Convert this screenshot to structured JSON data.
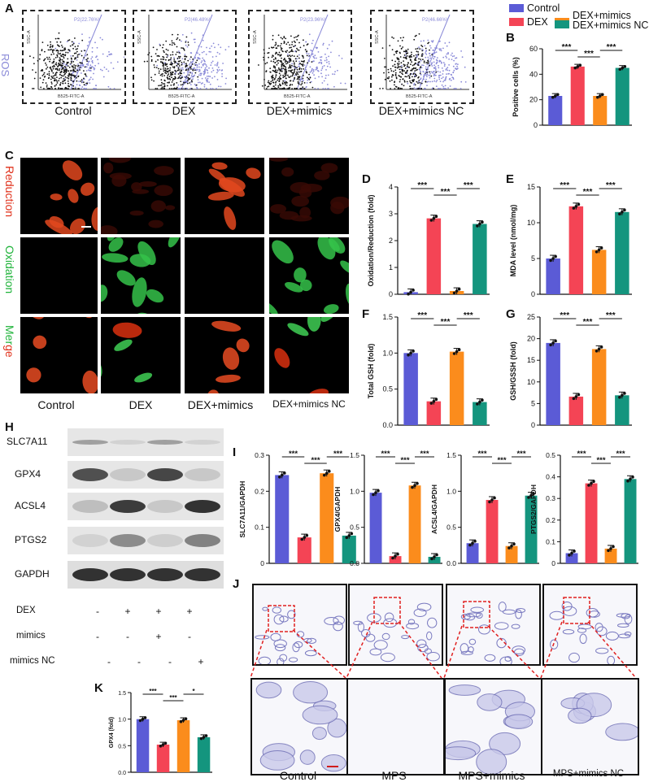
{
  "panel_letters": [
    "A",
    "B",
    "C",
    "D",
    "E",
    "F",
    "G",
    "H",
    "I",
    "J",
    "K"
  ],
  "colors": {
    "control": "#5b5bd6",
    "dex": "#f44455",
    "mimics": "#fb8c1c",
    "nc": "#14957e"
  },
  "legend": [
    "Control",
    "DEX",
    "DEX+mimics",
    "DEX+mimics NC"
  ],
  "flow": {
    "ylabel": "ROS",
    "xlabel": "B525-FITC-A",
    "yaxis": "SSC-A",
    "panels": [
      {
        "label": "Control",
        "gate": "P2(22.76%)"
      },
      {
        "label": "DEX",
        "gate": "P2(46.48%)"
      },
      {
        "label": "DEX+mimics",
        "gate": "P2(23.96%)"
      },
      {
        "label": "DEX+mimics NC",
        "gate": "P2(46.66%)"
      }
    ]
  },
  "micro": {
    "rows": [
      "Reduction",
      "Oxidation",
      "Merge"
    ],
    "cols": [
      "Control",
      "DEX",
      "DEX+mimics",
      "DEX+mimics NC"
    ]
  },
  "wb": {
    "bands": [
      "SLC7A11",
      "GPX4",
      "ACSL4",
      "PTGS2",
      "GAPDH"
    ],
    "conditions": [
      {
        "name": "DEX",
        "signs": [
          "-",
          "+",
          "+",
          "+"
        ]
      },
      {
        "name": "mimics",
        "signs": [
          "-",
          "-",
          "+",
          "-"
        ]
      },
      {
        "name": "mimics NC",
        "signs": [
          "-",
          "-",
          "-",
          "+"
        ]
      }
    ]
  },
  "histo": {
    "labels": [
      "Control",
      "MPS",
      "MPS+mimics",
      "MPS+mimics NC"
    ]
  },
  "chart_data": [
    {
      "panel": "B",
      "type": "bar",
      "ylabel": "Positive cells (%)",
      "ylim": [
        0,
        60
      ],
      "ticks": [
        0,
        20,
        40,
        60
      ],
      "values": [
        23,
        46,
        23,
        45
      ],
      "sig": [
        "***",
        "***",
        "***"
      ]
    },
    {
      "panel": "D",
      "type": "bar",
      "ylabel": "Oxidation/Reduction (fold)",
      "ylim": [
        0,
        4
      ],
      "ticks": [
        0,
        1,
        2,
        3,
        4
      ],
      "values": [
        0.08,
        2.83,
        0.12,
        2.62
      ],
      "sig": [
        "***",
        "***",
        "***"
      ]
    },
    {
      "panel": "E",
      "type": "bar",
      "ylabel": "MDA level (nmol/mg)",
      "ylim": [
        0,
        15
      ],
      "ticks": [
        0,
        5,
        10,
        15
      ],
      "values": [
        5.0,
        12.3,
        6.2,
        11.5
      ],
      "sig": [
        "***",
        "***",
        "***"
      ]
    },
    {
      "panel": "F",
      "type": "bar",
      "ylabel": "Total GSH (fold)",
      "ylim": [
        0,
        1.5
      ],
      "ticks": [
        0,
        0.5,
        1.0,
        1.5
      ],
      "values": [
        1.0,
        0.33,
        1.02,
        0.32
      ],
      "sig": [
        "***",
        "***",
        "***"
      ]
    },
    {
      "panel": "G",
      "type": "bar",
      "ylabel": "GSH/GSSH (fold)",
      "ylim": [
        0,
        25
      ],
      "ticks": [
        0,
        5,
        10,
        15,
        20,
        25
      ],
      "values": [
        19.0,
        6.6,
        17.6,
        6.9
      ],
      "sig": [
        "***",
        "***",
        "***"
      ]
    },
    {
      "panel": "I1",
      "type": "bar",
      "ylabel": "SLC7A11/GAPDH",
      "ylim": [
        0,
        0.3
      ],
      "ticks": [
        0,
        0.1,
        0.2,
        0.3
      ],
      "values": [
        0.245,
        0.072,
        0.25,
        0.077
      ],
      "sig": [
        "***",
        "***",
        "***"
      ]
    },
    {
      "panel": "I2",
      "type": "bar",
      "ylabel": "GPX4/GAPDH",
      "ylim": [
        0,
        1.5
      ],
      "ticks": [
        0,
        0.5,
        1.0,
        1.5
      ],
      "values": [
        0.98,
        0.1,
        1.08,
        0.09
      ],
      "sig": [
        "***",
        "***",
        "***"
      ]
    },
    {
      "panel": "I3",
      "type": "bar",
      "ylabel": "ACSL4/GAPDH",
      "ylim": [
        0,
        1.5
      ],
      "ticks": [
        0,
        0.5,
        1.0,
        1.5
      ],
      "values": [
        0.28,
        0.88,
        0.24,
        0.94
      ],
      "sig": [
        "***",
        "***",
        "***"
      ]
    },
    {
      "panel": "I4",
      "type": "bar",
      "ylabel": "PTGS2/GAPDH",
      "ylim": [
        0,
        0.5
      ],
      "ticks": [
        0,
        0.1,
        0.2,
        0.3,
        0.4,
        0.5
      ],
      "values": [
        0.047,
        0.37,
        0.068,
        0.39
      ],
      "sig": [
        "***",
        "***",
        "***"
      ]
    },
    {
      "panel": "K",
      "type": "bar",
      "ylabel": "GPX4 (fold)",
      "ylim": [
        0,
        1.5
      ],
      "ticks": [
        0,
        0.5,
        1.0,
        1.5
      ],
      "values": [
        1.0,
        0.52,
        0.98,
        0.66
      ],
      "sig": [
        "***",
        "***",
        "*"
      ]
    }
  ]
}
